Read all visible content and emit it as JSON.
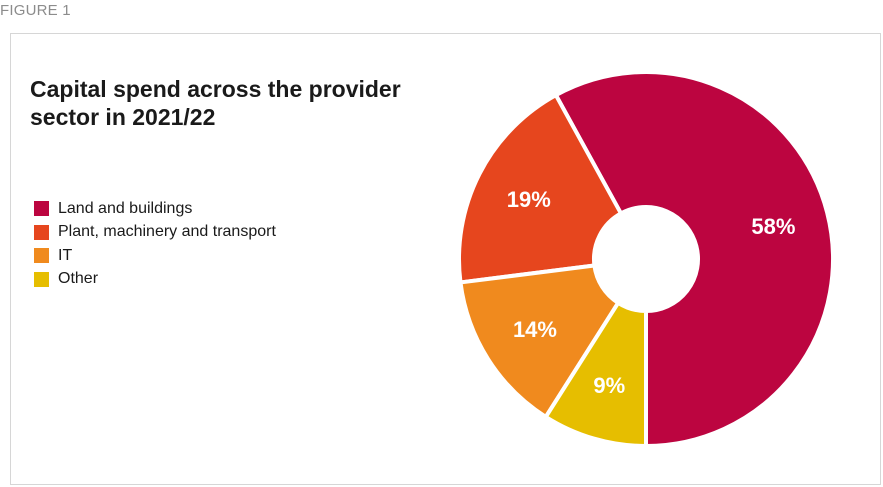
{
  "figure_label": "FIGURE 1",
  "chart_data": {
    "type": "pie",
    "title_lines": [
      "Capital spend across the provider",
      "sector in 2021/22"
    ],
    "legend_placement": "left",
    "slices": [
      {
        "name": "Land and buildings",
        "value": 58,
        "label": "58%",
        "color": "#BC0540"
      },
      {
        "name": "Plant, machinery and transport",
        "value": 19,
        "label": "19%",
        "color": "#E6461E"
      },
      {
        "name": "IT",
        "value": 14,
        "label": "14%",
        "color": "#F08A1E"
      },
      {
        "name": "Other",
        "value": 9,
        "label": "9%",
        "color": "#E6BE00"
      }
    ]
  }
}
